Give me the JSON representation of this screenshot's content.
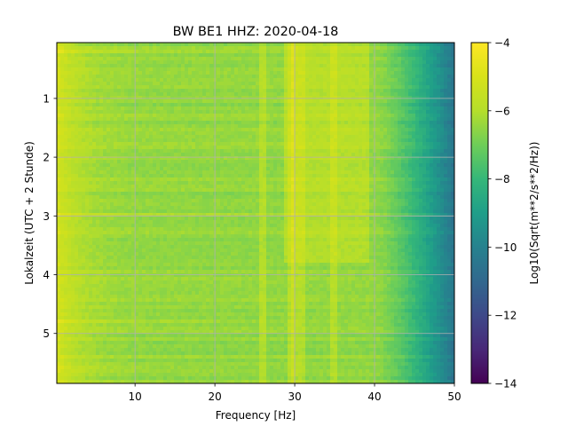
{
  "chart_data": {
    "type": "heatmap",
    "title": "BW BE1  HHZ: 2020-04-18",
    "xlabel": "Frequency [Hz]",
    "ylabel": "Lokalzeit (UTC + 2 Stunde)",
    "xlim": [
      0.2,
      50
    ],
    "ylim": [
      5.85,
      0.05
    ],
    "xticks": [
      10,
      20,
      30,
      40,
      50
    ],
    "xtick_labels": [
      "10",
      "20",
      "30",
      "40",
      "50"
    ],
    "yticks": [
      1,
      2,
      3,
      4,
      5
    ],
    "ytick_labels": [
      "1",
      "2",
      "3",
      "4",
      "5"
    ],
    "grid": true,
    "colormap": "viridis",
    "colorbar": {
      "label": "Log10(Sqrt(m**2/s**2/Hz))",
      "range": [
        -14,
        -4
      ],
      "ticks": [
        -4,
        -6,
        -8,
        -10,
        -12,
        -14
      ],
      "tick_labels": [
        "−4",
        "−6",
        "−8",
        "−10",
        "−12",
        "−14"
      ]
    },
    "spectral_features": {
      "baseline_level": -6.5,
      "low_freq_level": -5.0,
      "rolloff_start_hz": 40,
      "rolloff_end_level": -10.5,
      "band_30hz_level": -5.8,
      "lines_hz": [
        26,
        29.5,
        30,
        31,
        35
      ],
      "bright_rows_hour": [
        0.2,
        3.0,
        4.8,
        5.6
      ]
    }
  }
}
